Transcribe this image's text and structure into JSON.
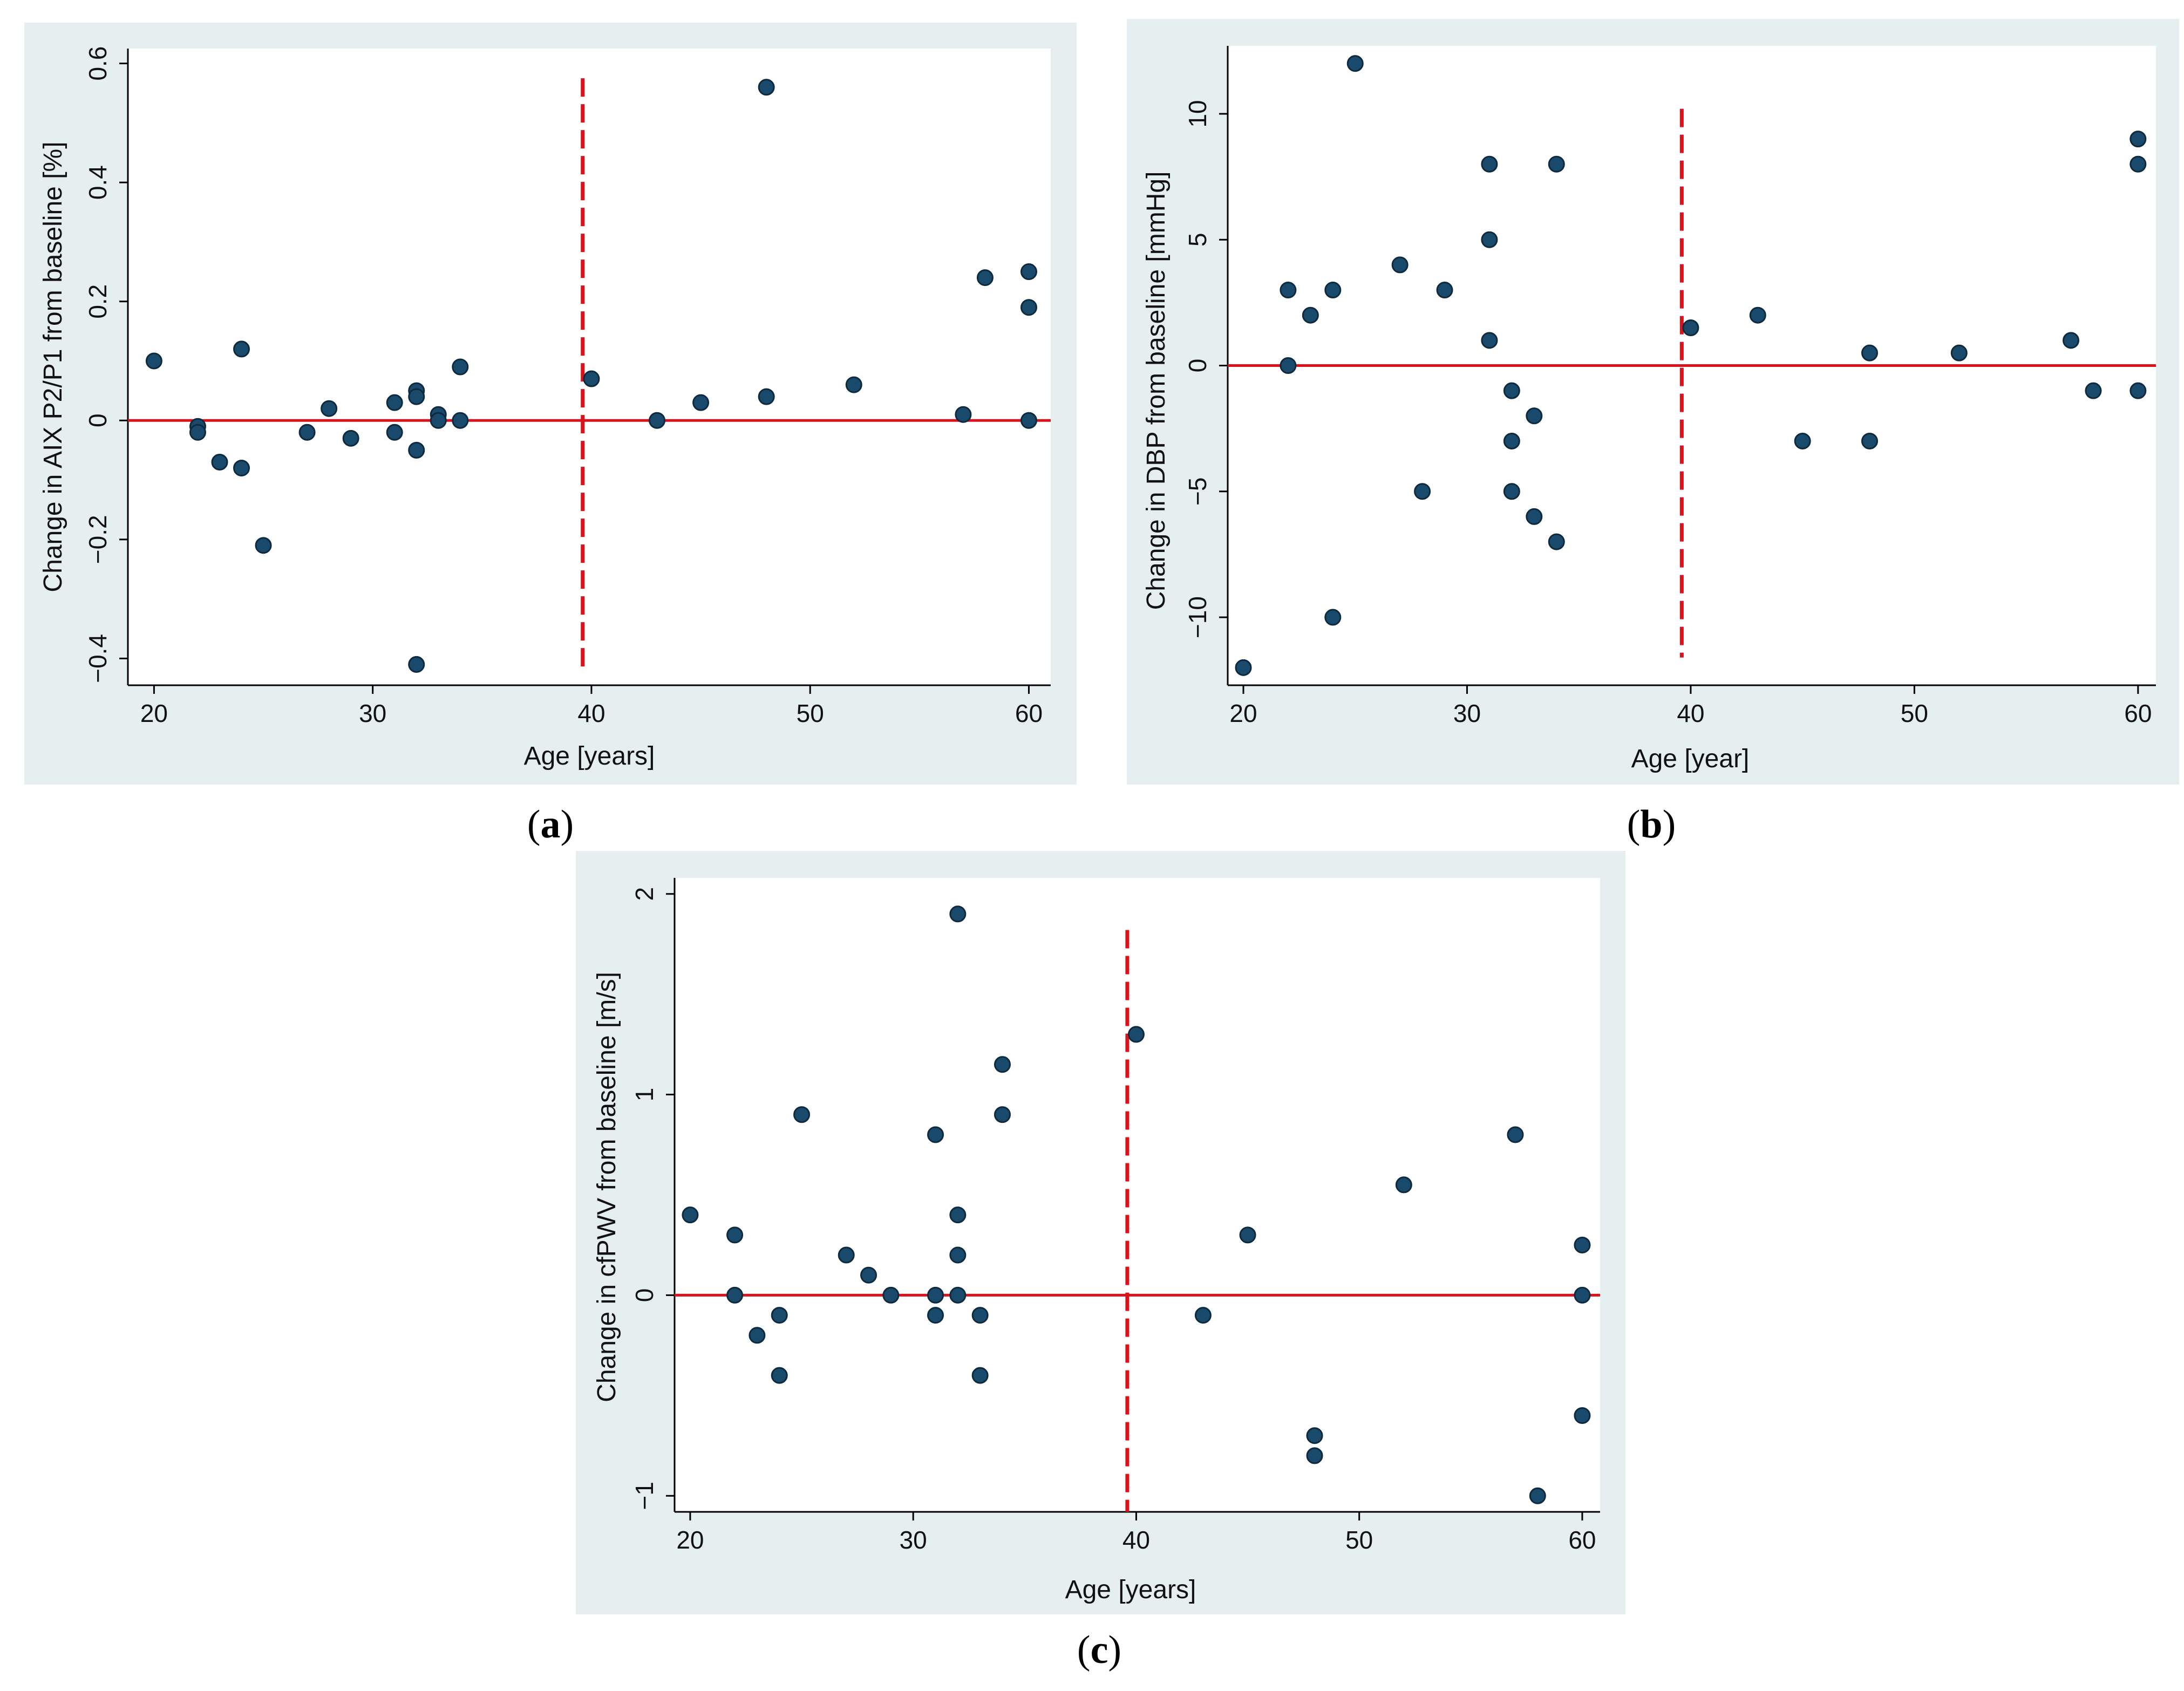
{
  "chart_data": [
    {
      "type": "scatter",
      "panel_label": "a",
      "title": "",
      "xlabel": "Age [years]",
      "ylabel": "Change in AIX P2/P1 from baseline [%]",
      "xlim": [
        19.2,
        61
      ],
      "ylim": [
        -0.445,
        0.625
      ],
      "xticks": [
        20,
        30,
        40,
        50,
        60
      ],
      "yticks": [
        -0.4,
        -0.2,
        0,
        0.2,
        0.4,
        0.6
      ],
      "ytick_labels": [
        "−0.4",
        "−0.2",
        "0",
        "0.2",
        "0.4",
        "0.6"
      ],
      "reference_lines": {
        "horizontal_y": 0,
        "vertical_x": 39.6,
        "vertical_y_range": [
          -0.42,
          0.575
        ]
      },
      "grid": false,
      "points": [
        {
          "x": 20,
          "y": 0.1
        },
        {
          "x": 22,
          "y": -0.01
        },
        {
          "x": 22,
          "y": -0.02
        },
        {
          "x": 23,
          "y": -0.07
        },
        {
          "x": 24,
          "y": 0.12
        },
        {
          "x": 24,
          "y": -0.08
        },
        {
          "x": 25,
          "y": -0.21
        },
        {
          "x": 27,
          "y": -0.02
        },
        {
          "x": 28,
          "y": 0.02
        },
        {
          "x": 29,
          "y": -0.03
        },
        {
          "x": 31,
          "y": 0.03
        },
        {
          "x": 31,
          "y": -0.02
        },
        {
          "x": 32,
          "y": 0.05
        },
        {
          "x": 32,
          "y": 0.04
        },
        {
          "x": 32,
          "y": -0.05
        },
        {
          "x": 32,
          "y": -0.41
        },
        {
          "x": 33,
          "y": 0.01
        },
        {
          "x": 33,
          "y": 0.0
        },
        {
          "x": 34,
          "y": 0.09
        },
        {
          "x": 34,
          "y": 0.0
        },
        {
          "x": 40,
          "y": 0.07
        },
        {
          "x": 43,
          "y": 0.0
        },
        {
          "x": 45,
          "y": 0.03
        },
        {
          "x": 48,
          "y": 0.56
        },
        {
          "x": 48,
          "y": 0.04
        },
        {
          "x": 52,
          "y": 0.06
        },
        {
          "x": 57,
          "y": 0.01
        },
        {
          "x": 58,
          "y": 0.24
        },
        {
          "x": 60,
          "y": 0.25
        },
        {
          "x": 60,
          "y": 0.19
        },
        {
          "x": 60,
          "y": 0.0
        }
      ]
    },
    {
      "type": "scatter",
      "panel_label": "b",
      "title": "",
      "xlabel": "Age [year]",
      "ylabel": "Change in DBP from baseline [mmHg]",
      "xlim": [
        19.3,
        60.8
      ],
      "ylim": [
        -12.7,
        12.7
      ],
      "xticks": [
        20,
        30,
        40,
        50,
        60
      ],
      "yticks": [
        -10,
        -5,
        0,
        5,
        10
      ],
      "ytick_labels": [
        "−10",
        "−5",
        "0",
        "5",
        "10"
      ],
      "reference_lines": {
        "horizontal_y": 0,
        "vertical_x": 39.6,
        "vertical_y_range": [
          -11.6,
          10.2
        ]
      },
      "grid": false,
      "points": [
        {
          "x": 20,
          "y": -12
        },
        {
          "x": 22,
          "y": 3
        },
        {
          "x": 22,
          "y": 0
        },
        {
          "x": 23,
          "y": 2
        },
        {
          "x": 24,
          "y": 3
        },
        {
          "x": 24,
          "y": -10
        },
        {
          "x": 25,
          "y": 12
        },
        {
          "x": 27,
          "y": 4
        },
        {
          "x": 28,
          "y": -5
        },
        {
          "x": 29,
          "y": 3
        },
        {
          "x": 31,
          "y": 8
        },
        {
          "x": 31,
          "y": 5
        },
        {
          "x": 31,
          "y": 1
        },
        {
          "x": 32,
          "y": -1
        },
        {
          "x": 32,
          "y": -3
        },
        {
          "x": 32,
          "y": -5
        },
        {
          "x": 33,
          "y": -2
        },
        {
          "x": 33,
          "y": -6
        },
        {
          "x": 34,
          "y": 8
        },
        {
          "x": 34,
          "y": -7
        },
        {
          "x": 40,
          "y": 1.5
        },
        {
          "x": 43,
          "y": 2
        },
        {
          "x": 45,
          "y": -3
        },
        {
          "x": 48,
          "y": 0.5
        },
        {
          "x": 48,
          "y": -3
        },
        {
          "x": 52,
          "y": 0.5
        },
        {
          "x": 57,
          "y": 1
        },
        {
          "x": 58,
          "y": -1
        },
        {
          "x": 60,
          "y": 9
        },
        {
          "x": 60,
          "y": 8
        },
        {
          "x": 60,
          "y": -1
        }
      ]
    },
    {
      "type": "scatter",
      "panel_label": "c",
      "title": "",
      "xlabel": "Age [years]",
      "ylabel": "Change in cfPWV from baseline [m/s]",
      "xlim": [
        19.3,
        60.8
      ],
      "ylim": [
        -1.08,
        2.08
      ],
      "xticks": [
        20,
        30,
        40,
        50,
        60
      ],
      "yticks": [
        -1,
        0,
        1,
        2
      ],
      "ytick_labels": [
        "−1",
        "0",
        "1",
        "2"
      ],
      "reference_lines": {
        "horizontal_y": 0,
        "vertical_x": 39.6,
        "vertical_y_range": [
          -1.08,
          1.82
        ]
      },
      "grid": false,
      "points": [
        {
          "x": 20,
          "y": 0.4
        },
        {
          "x": 22,
          "y": 0.3
        },
        {
          "x": 22,
          "y": 0.0
        },
        {
          "x": 23,
          "y": -0.2
        },
        {
          "x": 24,
          "y": -0.1
        },
        {
          "x": 24,
          "y": -0.4
        },
        {
          "x": 25,
          "y": 0.9
        },
        {
          "x": 27,
          "y": 0.2
        },
        {
          "x": 28,
          "y": 0.1
        },
        {
          "x": 29,
          "y": 0.0
        },
        {
          "x": 31,
          "y": 0.8
        },
        {
          "x": 31,
          "y": 0.0
        },
        {
          "x": 31,
          "y": -0.1
        },
        {
          "x": 32,
          "y": 1.9
        },
        {
          "x": 32,
          "y": 0.4
        },
        {
          "x": 32,
          "y": 0.2
        },
        {
          "x": 32,
          "y": 0.0
        },
        {
          "x": 33,
          "y": -0.1
        },
        {
          "x": 33,
          "y": -0.4
        },
        {
          "x": 34,
          "y": 1.15
        },
        {
          "x": 34,
          "y": 0.9
        },
        {
          "x": 40,
          "y": 1.3
        },
        {
          "x": 43,
          "y": -0.1
        },
        {
          "x": 45,
          "y": 0.3
        },
        {
          "x": 48,
          "y": -0.7
        },
        {
          "x": 48,
          "y": -0.8
        },
        {
          "x": 52,
          "y": 0.55
        },
        {
          "x": 57,
          "y": 0.8
        },
        {
          "x": 58,
          "y": -1.0
        },
        {
          "x": 60,
          "y": 0.25
        },
        {
          "x": 60,
          "y": 0.0
        },
        {
          "x": 60,
          "y": -0.6
        }
      ]
    }
  ],
  "colors": {
    "panel_background": "#e5efef",
    "plot_background": "#ffffff",
    "point_fill": "#1a4a6b",
    "reference_line": "#d9121b",
    "axis": "#000000"
  }
}
